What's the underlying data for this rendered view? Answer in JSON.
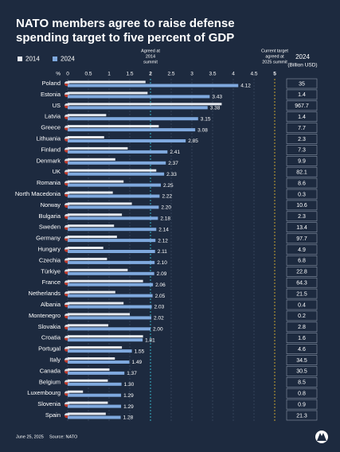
{
  "chart_data": {
    "type": "bar",
    "title": [
      "NATO members agree to raise defense",
      "spending target to five percent of GDP"
    ],
    "categories": [
      "Poland",
      "Estonia",
      "US",
      "Latvia",
      "Greece",
      "Lithuania",
      "Finland",
      "Denmark",
      "UK",
      "Romania",
      "North Macedonia",
      "Norway",
      "Bulgaria",
      "Sweden",
      "Germany",
      "Hungary",
      "Czechia",
      "Türkiye",
      "France",
      "Netherlands",
      "Albania",
      "Montenegro",
      "Slovakia",
      "Croatia",
      "Portugal",
      "Italy",
      "Canada",
      "Belgium",
      "Luxembourg",
      "Slovenia",
      "Spain"
    ],
    "series": [
      {
        "name": "2014",
        "color": "#e6eaf0",
        "values": [
          1.88,
          1.93,
          3.72,
          0.93,
          2.2,
          0.88,
          1.45,
          1.15,
          2.14,
          1.35,
          1.09,
          1.55,
          1.31,
          1.12,
          1.19,
          0.86,
          0.95,
          1.45,
          1.82,
          1.15,
          1.35,
          1.5,
          0.98,
          1.82,
          1.31,
          1.14,
          1.01,
          0.97,
          0.37,
          0.97,
          0.92
        ]
      },
      {
        "name": "2024",
        "color": "#7fa9de",
        "values": [
          4.12,
          3.43,
          3.38,
          3.15,
          3.08,
          2.85,
          2.41,
          2.37,
          2.33,
          2.25,
          2.22,
          2.2,
          2.18,
          2.14,
          2.12,
          2.11,
          2.1,
          2.09,
          2.06,
          2.05,
          2.03,
          2.02,
          2.0,
          1.81,
          1.55,
          1.49,
          1.37,
          1.3,
          1.29,
          1.29,
          1.28
        ],
        "value_labels": [
          "4.12",
          "3.43",
          "3.38",
          "3.15",
          "3.08",
          "2.85",
          "2.41",
          "2.37",
          "2.33",
          "2.25",
          "2.22",
          "2.20",
          "2.18",
          "2.14",
          "2.12",
          "2.11",
          "2.10",
          "2.09",
          "2.06",
          "2.05",
          "2.03",
          "2.02",
          "2.00",
          "1.81",
          "1.55",
          "1.49",
          "1.37",
          "1.30",
          "1.29",
          "1.29",
          "1.28"
        ]
      }
    ],
    "xlabel": "%",
    "xlim": [
      0,
      5
    ],
    "xticks": [
      0,
      0.5,
      1,
      1.5,
      2,
      2.5,
      3,
      3.5,
      4,
      4.5,
      5
    ],
    "reference_lines": [
      {
        "value": 2,
        "label": [
          "Agreed at",
          "2014",
          "summit"
        ],
        "color": "#3fd3e6"
      },
      {
        "value": 5,
        "label": [
          "Current target",
          "agreed at",
          "2025 summit"
        ],
        "color": "#f2c230"
      }
    ],
    "spending_header": [
      "2024",
      "(Billion USD)"
    ],
    "spending": [
      35,
      1.4,
      967.7,
      1.4,
      7.7,
      2.3,
      7.3,
      9.9,
      82.1,
      8.6,
      0.3,
      10.6,
      2.3,
      13.4,
      97.7,
      4.9,
      6.8,
      22.8,
      64.3,
      21.5,
      0.4,
      0.2,
      2.8,
      1.6,
      4.6,
      34.5,
      30.5,
      8.5,
      0.8,
      0.9,
      21.3
    ],
    "date": "June 25, 2025",
    "source": "Source: NATO"
  }
}
